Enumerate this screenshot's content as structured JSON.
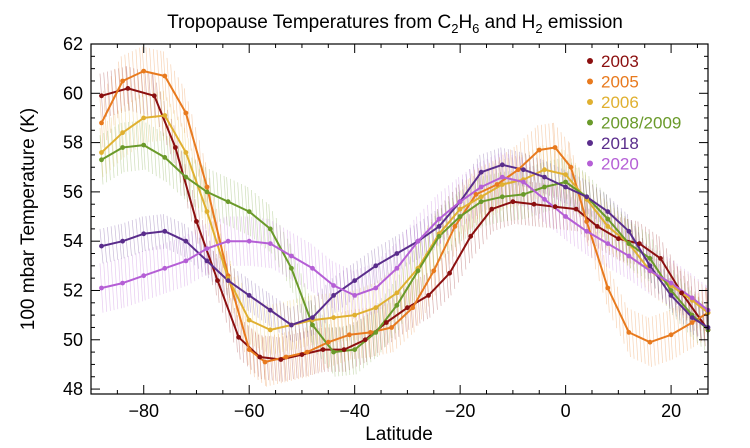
{
  "chart_data": {
    "type": "line",
    "title": {
      "prefix": "Tropopause Temperatures from C",
      "sub1": "2",
      "mid1": "H",
      "sub2": "6",
      "mid2": " and H",
      "sub3": "2",
      "suffix": " emission"
    },
    "xlabel": "Latitude",
    "ylabel": "100 mbar Temperature (K)",
    "xlim": [
      -90,
      27
    ],
    "ylim": [
      47.8,
      62
    ],
    "xticks": [
      -80,
      -60,
      -40,
      -20,
      0,
      20
    ],
    "yticks": [
      48,
      50,
      52,
      54,
      56,
      58,
      60,
      62
    ],
    "legend_position": "top-right",
    "grid": false,
    "series": [
      {
        "name": "2003",
        "color": "#8b0f0f",
        "band": 0.9,
        "x": [
          -88,
          -83,
          -78,
          -74,
          -70,
          -66,
          -62,
          -58,
          -54,
          -50,
          -46,
          -42,
          -38,
          -34,
          -30,
          -26,
          -22,
          -18,
          -14,
          -10,
          -6,
          -2,
          2,
          6,
          10,
          14,
          18,
          22,
          27
        ],
        "values": [
          59.9,
          60.2,
          59.9,
          57.8,
          54.8,
          52.4,
          50.1,
          49.3,
          49.2,
          49.4,
          49.6,
          49.6,
          50.0,
          50.7,
          51.3,
          51.8,
          52.7,
          54.2,
          55.3,
          55.6,
          55.5,
          55.4,
          55.3,
          54.6,
          54.1,
          53.9,
          53.3,
          51.9,
          50.4
        ]
      },
      {
        "name": "2005",
        "color": "#e87a1e",
        "band": 1.0,
        "x": [
          -88,
          -84,
          -80,
          -76,
          -72,
          -68,
          -64,
          -60,
          -57,
          -53,
          -49,
          -45,
          -41,
          -37,
          -33,
          -29,
          -25,
          -21,
          -17,
          -13,
          -9,
          -5,
          -2,
          1,
          4,
          8,
          12,
          16,
          20,
          24,
          27
        ],
        "values": [
          58.8,
          60.5,
          60.9,
          60.7,
          59.2,
          56.2,
          52.6,
          49.6,
          49.1,
          49.3,
          49.5,
          49.9,
          50.2,
          50.3,
          50.5,
          51.3,
          52.8,
          54.6,
          55.9,
          56.3,
          56.9,
          57.7,
          57.8,
          57.0,
          54.8,
          52.1,
          50.3,
          49.9,
          50.2,
          50.7,
          51.1
        ]
      },
      {
        "name": "2006",
        "color": "#e0b030",
        "band": 1.0,
        "x": [
          -88,
          -84,
          -80,
          -76,
          -72,
          -68,
          -64,
          -60,
          -56,
          -52,
          -48,
          -44,
          -40,
          -36,
          -32,
          -28,
          -24,
          -20,
          -16,
          -12,
          -8,
          -4,
          0,
          4,
          8,
          12,
          16,
          20,
          24,
          27
        ],
        "values": [
          57.6,
          58.4,
          59.0,
          59.1,
          57.6,
          55.2,
          52.5,
          50.8,
          50.4,
          50.6,
          50.8,
          50.9,
          51.0,
          51.3,
          51.9,
          52.9,
          54.3,
          55.3,
          55.8,
          56.3,
          56.5,
          56.9,
          56.7,
          55.7,
          54.6,
          53.9,
          52.8,
          52.2,
          51.6,
          51.1
        ]
      },
      {
        "name": "2008/2009",
        "color": "#6a9a2a",
        "band": 1.0,
        "x": [
          -88,
          -84,
          -80,
          -76,
          -72,
          -68,
          -64,
          -60,
          -56,
          -52,
          -48,
          -44,
          -40,
          -36,
          -32,
          -28,
          -24,
          -20,
          -16,
          -12,
          -8,
          -4,
          0,
          4,
          8,
          12,
          16,
          20,
          24,
          27
        ],
        "values": [
          57.3,
          57.8,
          57.9,
          57.4,
          56.6,
          56.0,
          55.6,
          55.2,
          54.5,
          52.9,
          50.6,
          49.5,
          49.6,
          50.3,
          51.4,
          52.8,
          54.2,
          55.0,
          55.6,
          55.8,
          55.9,
          56.2,
          56.4,
          55.8,
          54.9,
          53.9,
          53.3,
          52.0,
          51.0,
          50.4
        ]
      },
      {
        "name": "2018",
        "color": "#5a2d8c",
        "band": 0.7,
        "x": [
          -88,
          -84,
          -80,
          -76,
          -72,
          -68,
          -64,
          -60,
          -56,
          -52,
          -48,
          -44,
          -40,
          -36,
          -32,
          -28,
          -24,
          -20,
          -16,
          -12,
          -8,
          -4,
          0,
          4,
          8,
          12,
          16,
          20,
          24,
          27
        ],
        "values": [
          53.8,
          54.0,
          54.3,
          54.4,
          54.0,
          53.2,
          52.4,
          51.8,
          51.2,
          50.6,
          50.9,
          51.8,
          52.4,
          53.0,
          53.5,
          54.0,
          54.6,
          55.6,
          56.8,
          57.1,
          56.9,
          56.6,
          56.2,
          55.8,
          55.2,
          54.4,
          53.0,
          51.8,
          50.9,
          50.5
        ]
      },
      {
        "name": "2020",
        "color": "#b55fd6",
        "band": 1.0,
        "x": [
          -88,
          -84,
          -80,
          -76,
          -72,
          -68,
          -64,
          -60,
          -56,
          -52,
          -48,
          -44,
          -40,
          -36,
          -32,
          -28,
          -24,
          -20,
          -16,
          -12,
          -8,
          -4,
          0,
          4,
          8,
          12,
          16,
          20,
          24,
          27
        ],
        "values": [
          52.1,
          52.3,
          52.6,
          52.9,
          53.2,
          53.7,
          54.0,
          54.0,
          53.9,
          53.4,
          52.9,
          52.2,
          51.8,
          52.1,
          52.9,
          54.0,
          54.9,
          55.6,
          56.2,
          56.6,
          56.4,
          55.7,
          55.0,
          54.4,
          53.9,
          53.4,
          52.8,
          52.3,
          51.7,
          51.2
        ]
      }
    ]
  }
}
